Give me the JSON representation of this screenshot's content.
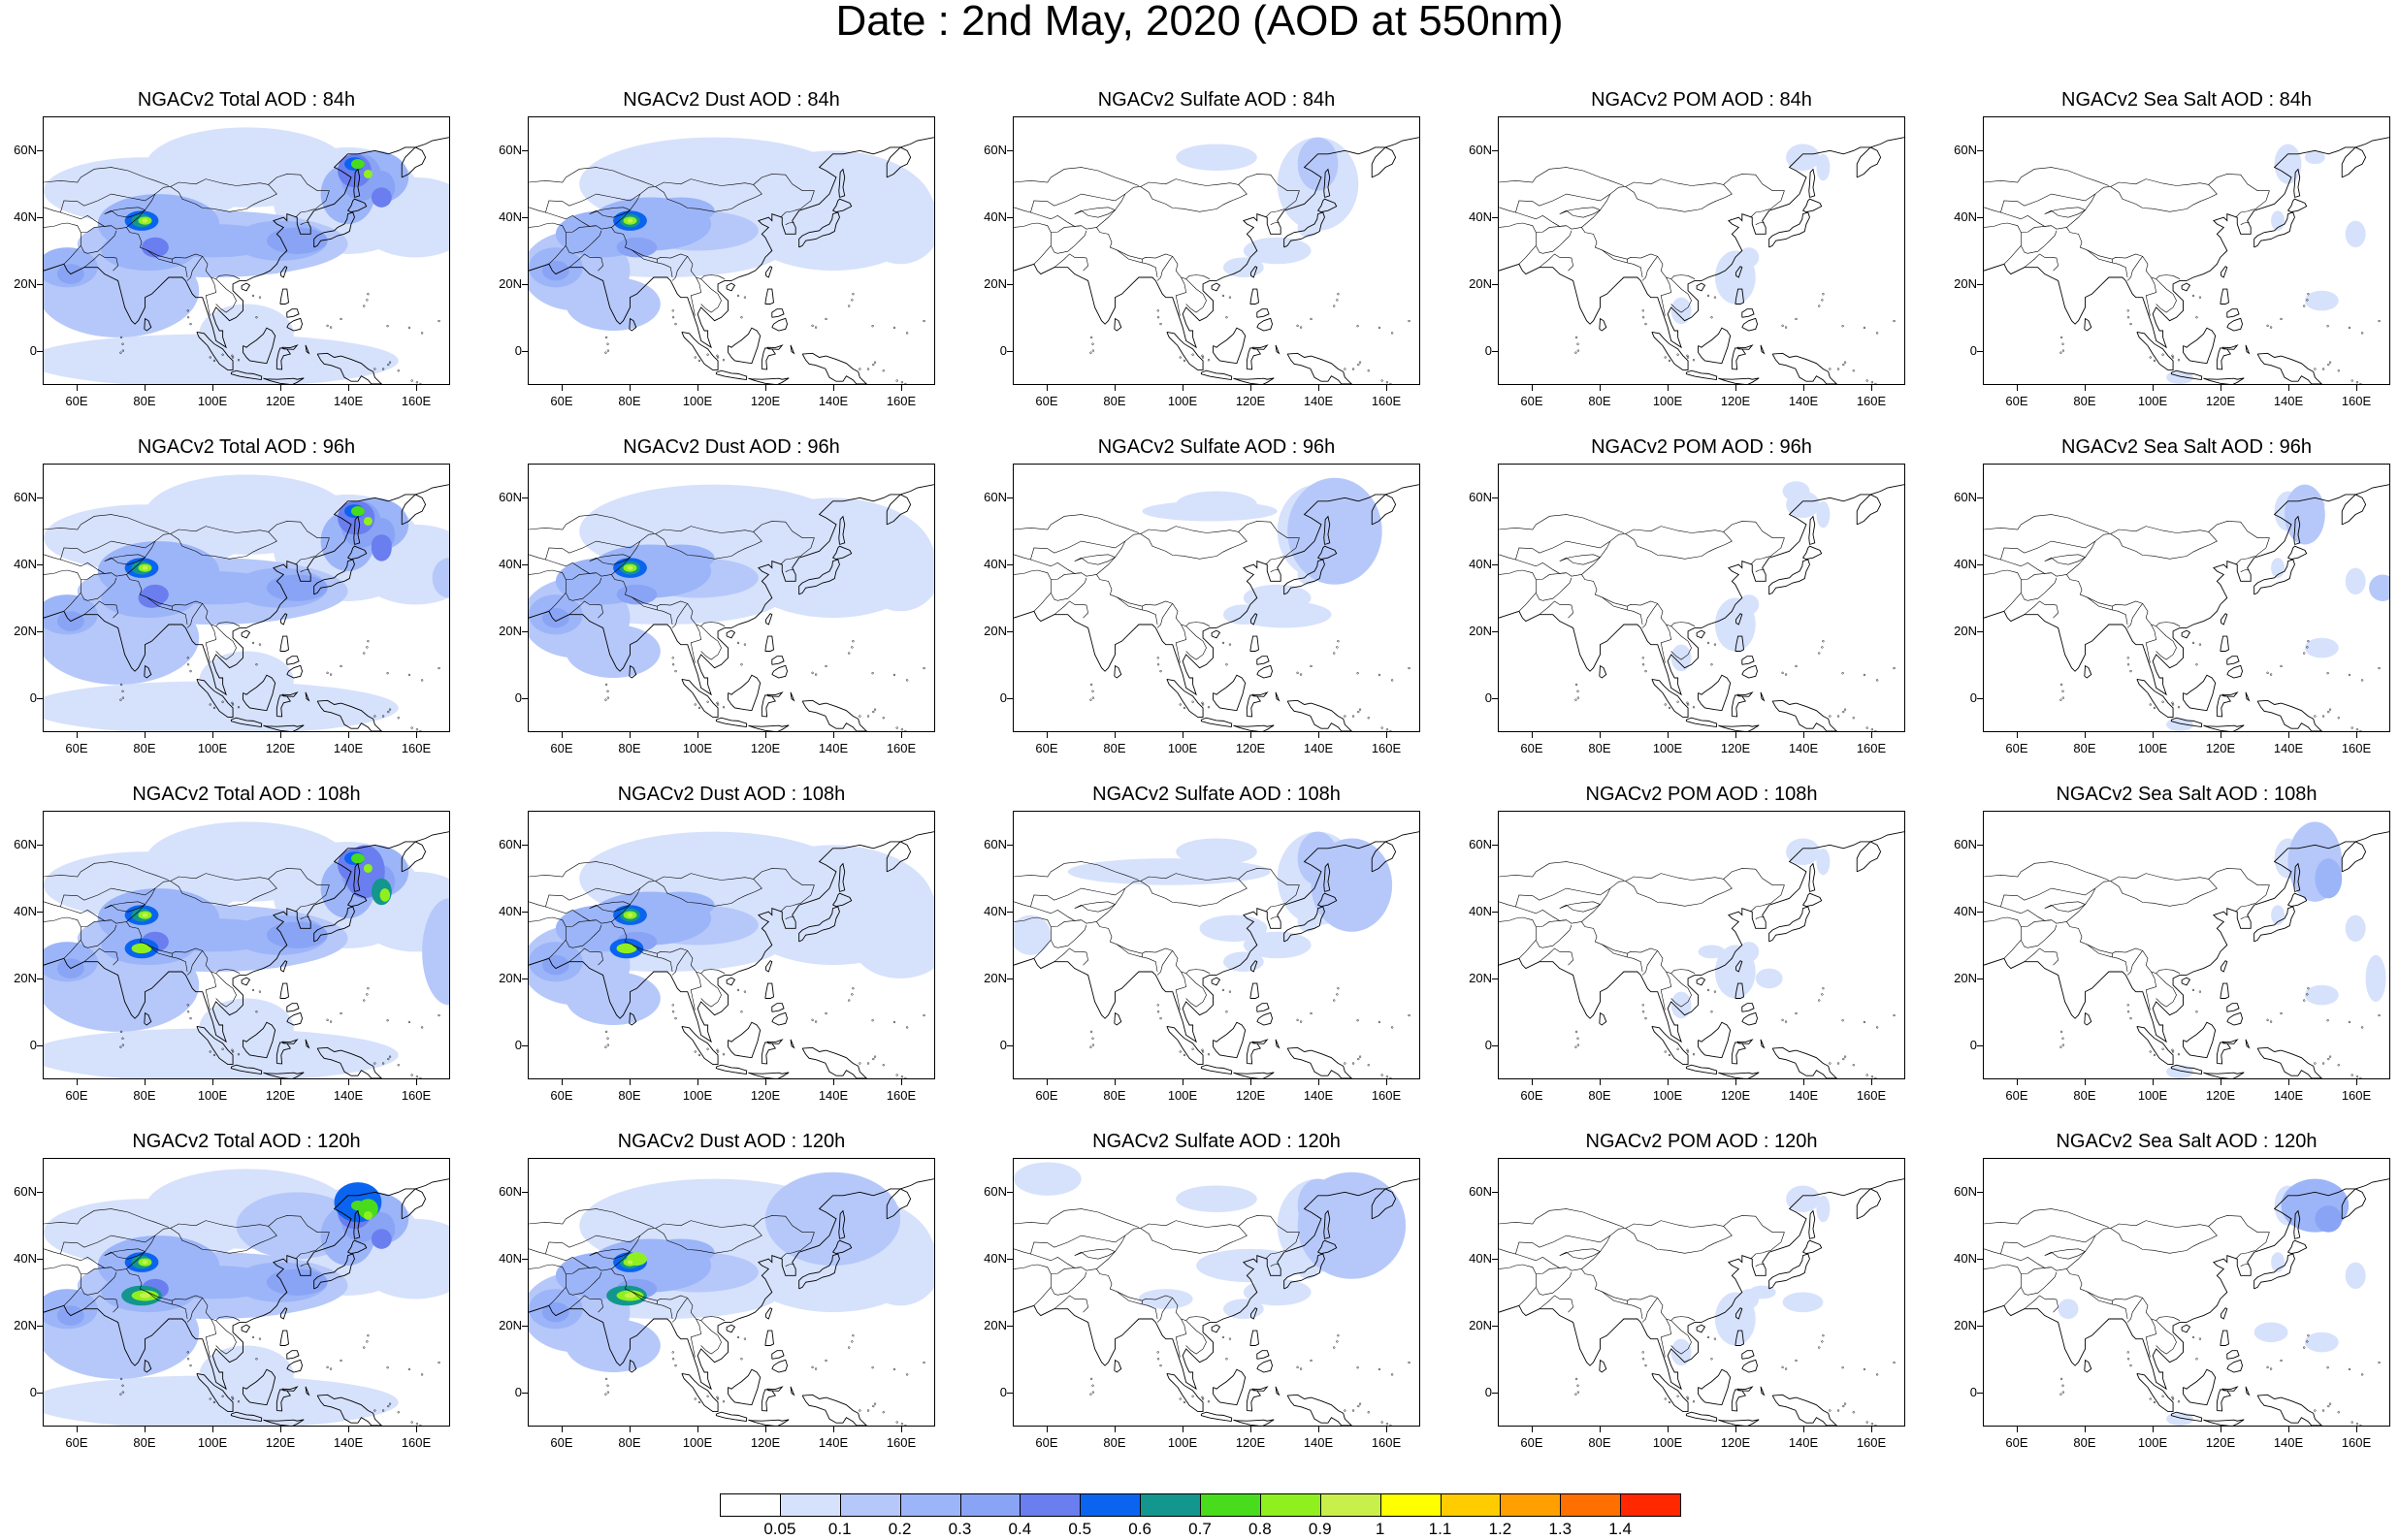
{
  "title": "Date : 2nd May, 2020 (AOD at 550nm)",
  "panel_titles": [
    [
      "NGACv2 Total AOD : 84h",
      "NGACv2 Dust AOD : 84h",
      "NGACv2 Sulfate AOD : 84h",
      "NGACv2 POM AOD : 84h",
      "NGACv2 Sea Salt AOD : 84h"
    ],
    [
      "NGACv2 Total AOD : 96h",
      "NGACv2 Dust AOD : 96h",
      "NGACv2 Sulfate AOD : 96h",
      "NGACv2 POM AOD : 96h",
      "NGACv2 Sea Salt AOD : 96h"
    ],
    [
      "NGACv2 Total AOD : 108h",
      "NGACv2 Dust AOD : 108h",
      "NGACv2 Sulfate AOD : 108h",
      "NGACv2 POM AOD : 108h",
      "NGACv2 Sea Salt AOD : 108h"
    ],
    [
      "NGACv2 Total AOD : 120h",
      "NGACv2 Dust AOD : 120h",
      "NGACv2 Sulfate AOD : 120h",
      "NGACv2 POM AOD : 120h",
      "NGACv2 Sea Salt  AOD : 120h"
    ]
  ],
  "map_extent": {
    "lon": [
      50,
      170
    ],
    "lat": [
      -10,
      70
    ]
  },
  "lat_labels": [
    "60N",
    "40N",
    "20N",
    "0"
  ],
  "lat_values": [
    60,
    40,
    20,
    0
  ],
  "lon_labels": [
    "60E",
    "80E",
    "100E",
    "120E",
    "140E",
    "160E"
  ],
  "lon_values": [
    60,
    80,
    100,
    120,
    140,
    160
  ],
  "colorbar": {
    "labels": [
      "0.05",
      "0.1",
      "0.2",
      "0.3",
      "0.4",
      "0.5",
      "0.6",
      "0.7",
      "0.8",
      "0.9",
      "1",
      "1.1",
      "1.2",
      "1.3",
      "1.4"
    ],
    "colors": [
      "#ffffff",
      "#d6e1fc",
      "#b6c8fa",
      "#9cb5f8",
      "#8aa4f5",
      "#6a7ef0",
      "#0a64f0",
      "#13968e",
      "#48dc1c",
      "#8ff01e",
      "#c9f04a",
      "#ffff00",
      "#ffcc00",
      "#ffa000",
      "#ff7000",
      "#ff2800"
    ]
  },
  "levels": {
    "l1": "#d6e1fc",
    "l2": "#b6c8fa",
    "l3": "#9cb5f8",
    "l4": "#8aa4f5",
    "l5": "#6a7ef0",
    "l6": "#0a64f0",
    "l7": "#13968e",
    "l8": "#48dc1c",
    "l9": "#8ff01e",
    "l10": "#c9f04a",
    "l11": "#ffff00"
  }
}
